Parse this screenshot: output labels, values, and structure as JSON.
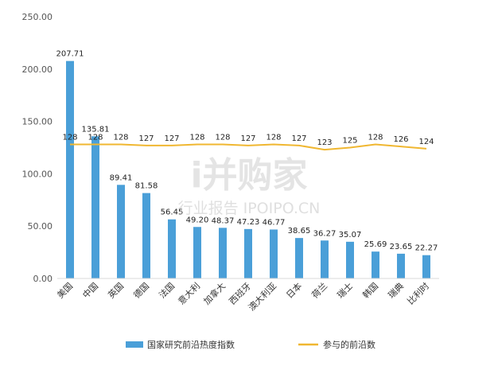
{
  "chart_data": {
    "type": "bar",
    "categories": [
      "美国",
      "中国",
      "英国",
      "德国",
      "法国",
      "意大利",
      "加拿大",
      "西班牙",
      "澳大利亚",
      "日本",
      "荷兰",
      "瑞士",
      "韩国",
      "瑞典",
      "比利时"
    ],
    "series": [
      {
        "name": "国家研究前沿热度指数",
        "type": "bar",
        "color": "#4a9fd8",
        "values": [
          207.71,
          135.81,
          89.41,
          81.58,
          56.45,
          49.2,
          48.37,
          47.23,
          46.77,
          38.65,
          36.27,
          35.07,
          25.69,
          23.65,
          22.27
        ],
        "labels": [
          "207.71",
          "135.81",
          "89.41",
          "81.58",
          "56.45",
          "49.20",
          "48.37",
          "47.23",
          "46.77",
          "38.65",
          "36.27",
          "35.07",
          "25.69",
          "23.65",
          "22.27"
        ]
      },
      {
        "name": "参与的前沿数",
        "type": "line",
        "color": "#f0b731",
        "values": [
          128,
          128,
          128,
          127,
          127,
          128,
          128,
          127,
          128,
          127,
          123,
          125,
          128,
          126,
          124
        ],
        "labels": [
          "128",
          "128",
          "128",
          "127",
          "127",
          "128",
          "128",
          "127",
          "128",
          "127",
          "123",
          "125",
          "128",
          "126",
          "124"
        ]
      }
    ],
    "ylim": [
      0,
      250
    ],
    "yticks": [
      "0.00",
      "50.00",
      "100.00",
      "150.00",
      "200.00",
      "250.00"
    ],
    "grid": false,
    "legend_position": "bottom"
  },
  "watermark": {
    "main": "i并购家",
    "sub": "行业报告 IPOIPO.CN"
  }
}
